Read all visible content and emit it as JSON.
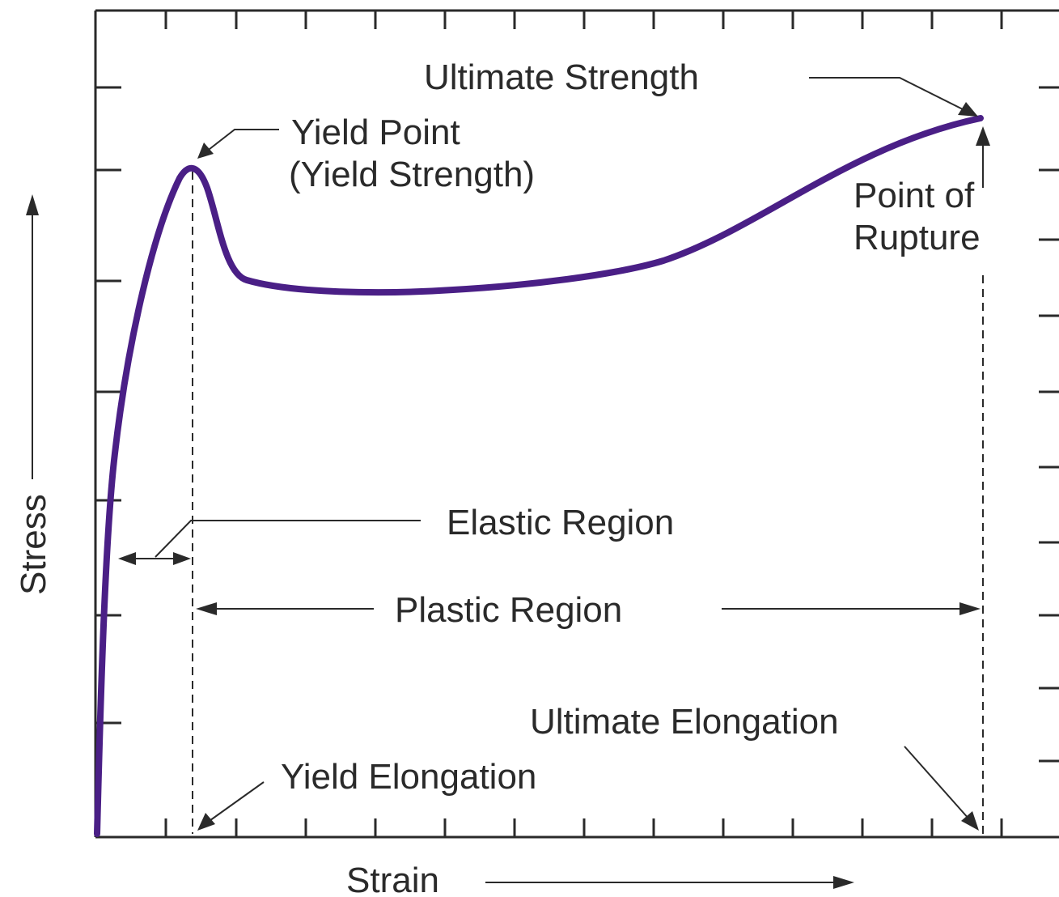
{
  "axes": {
    "x_label": "Strain",
    "y_label": "Stress"
  },
  "labels": {
    "ultimate_strength": "Ultimate Strength",
    "yield_point_line1": "Yield Point",
    "yield_point_line2": "(Yield Strength)",
    "rupture_line1": "Point of",
    "rupture_line2": "Rupture",
    "elastic_region": "Elastic Region",
    "plastic_region": "Plastic Region",
    "ultimate_elongation": "Ultimate Elongation",
    "yield_elongation": "Yield Elongation"
  },
  "colors": {
    "curve": "#4a1f86",
    "lines": "#2a2a2a",
    "background": "#ffffff"
  }
}
